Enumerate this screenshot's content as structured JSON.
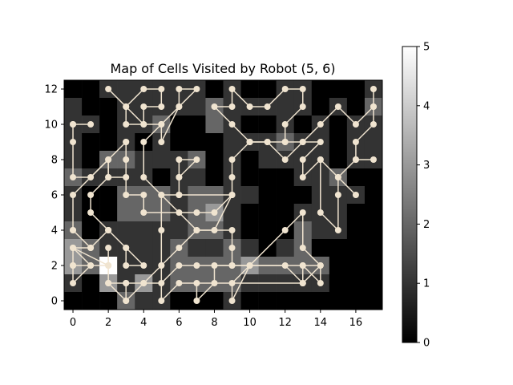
{
  "chart_data": {
    "type": "heatmap",
    "title": "Map of Cells Visited by Robot (5, 6)",
    "xlabel": "",
    "ylabel": "",
    "grid": false,
    "xlim": [
      -0.5,
      17.5
    ],
    "ylim": [
      -0.5,
      12.5
    ],
    "x_ticks": [
      0,
      2,
      4,
      6,
      8,
      10,
      12,
      14,
      16
    ],
    "y_ticks": [
      0,
      2,
      4,
      6,
      8,
      10,
      12
    ],
    "colorbar": {
      "min": 0,
      "max": 5,
      "ticks": [
        0,
        1,
        2,
        3,
        4,
        5
      ],
      "colormap": "gray"
    },
    "path_color": "#f0e4d0",
    "grid_rows_top_to_bottom": [
      [
        0,
        0,
        1,
        1,
        1,
        1,
        1,
        1,
        0,
        1,
        0,
        0,
        1,
        1,
        0,
        0,
        0,
        1
      ],
      [
        1,
        0,
        0,
        1,
        1,
        1,
        1,
        1,
        2,
        1,
        1,
        1,
        1,
        1,
        0,
        1,
        0,
        2
      ],
      [
        1,
        1,
        0,
        1,
        1,
        2,
        0,
        0,
        2,
        1,
        0,
        0,
        1,
        0,
        1,
        0,
        1,
        1
      ],
      [
        1,
        0,
        0,
        1,
        0,
        1,
        0,
        0,
        0,
        1,
        1,
        1,
        2,
        1,
        1,
        0,
        1,
        1
      ],
      [
        1,
        0,
        2,
        2,
        1,
        1,
        1,
        2,
        0,
        1,
        0,
        1,
        1,
        1,
        1,
        0,
        1,
        1
      ],
      [
        2,
        1,
        1,
        1,
        1,
        0,
        1,
        1,
        0,
        1,
        0,
        0,
        0,
        1,
        1,
        2,
        0,
        0
      ],
      [
        1,
        0,
        0,
        2,
        2,
        2,
        1,
        2,
        2,
        1,
        1,
        0,
        0,
        0,
        1,
        1,
        1,
        0
      ],
      [
        1,
        0,
        0,
        2,
        2,
        2,
        1,
        2,
        3,
        1,
        0,
        0,
        0,
        1,
        1,
        1,
        0,
        0
      ],
      [
        2,
        0,
        1,
        1,
        1,
        1,
        1,
        2,
        2,
        1,
        0,
        0,
        0,
        2,
        1,
        1,
        0,
        0
      ],
      [
        3,
        2,
        1,
        1,
        1,
        1,
        2,
        1,
        1,
        2,
        1,
        0,
        1,
        2,
        0,
        0,
        0,
        0
      ],
      [
        3,
        2,
        5,
        1,
        1,
        1,
        2,
        2,
        2,
        2,
        3,
        2,
        2,
        2,
        2,
        0,
        0,
        0
      ],
      [
        1,
        0,
        3,
        1,
        3,
        1,
        2,
        2,
        2,
        2,
        1,
        1,
        1,
        1,
        1,
        0,
        0,
        0
      ],
      [
        0,
        0,
        0,
        2,
        1,
        1,
        0,
        0,
        0,
        1,
        0,
        0,
        0,
        0,
        0,
        0,
        0,
        0
      ]
    ],
    "path_points": [
      [
        0,
        10
      ],
      [
        1,
        10
      ],
      [
        0,
        10
      ],
      [
        0,
        9
      ],
      [
        0,
        7
      ],
      [
        1,
        7
      ],
      [
        3,
        9
      ],
      [
        3,
        8
      ],
      [
        3,
        7
      ],
      [
        2,
        7
      ],
      [
        2,
        8
      ],
      [
        3,
        9
      ],
      [
        3,
        6
      ],
      [
        4,
        6
      ],
      [
        4,
        5
      ],
      [
        7,
        5
      ],
      [
        8,
        5
      ],
      [
        9,
        6
      ],
      [
        8,
        4
      ],
      [
        7,
        4
      ],
      [
        6,
        5
      ],
      [
        5,
        6
      ],
      [
        5,
        4
      ],
      [
        5,
        2
      ],
      [
        5,
        0
      ],
      [
        6,
        1
      ],
      [
        13,
        1
      ],
      [
        14,
        2
      ],
      [
        14,
        1
      ],
      [
        13,
        2
      ],
      [
        9,
        2
      ],
      [
        8,
        2
      ],
      [
        8,
        1
      ],
      [
        7,
        0
      ],
      [
        7,
        1
      ],
      [
        13,
        1
      ]
    ],
    "path_points_b": [
      [
        2,
        12
      ],
      [
        3,
        11
      ],
      [
        3,
        10
      ],
      [
        4,
        10
      ],
      [
        3,
        11
      ],
      [
        4,
        12
      ],
      [
        5,
        12
      ],
      [
        5,
        11
      ],
      [
        4,
        11
      ],
      [
        4,
        10
      ],
      [
        5,
        10
      ],
      [
        5,
        9
      ],
      [
        6,
        11
      ],
      [
        6,
        12
      ],
      [
        7,
        12
      ],
      [
        6,
        11
      ],
      [
        5,
        10
      ],
      [
        4,
        9
      ],
      [
        4,
        7
      ],
      [
        5,
        6
      ],
      [
        6,
        6
      ],
      [
        6,
        7
      ],
      [
        6,
        8
      ],
      [
        7,
        8
      ],
      [
        6,
        7
      ],
      [
        6,
        6
      ],
      [
        9,
        6
      ],
      [
        9,
        7
      ],
      [
        9,
        8
      ],
      [
        10,
        9
      ],
      [
        11,
        9
      ],
      [
        12,
        9
      ],
      [
        12,
        10
      ],
      [
        13,
        11
      ],
      [
        13,
        12
      ],
      [
        12,
        12
      ],
      [
        11,
        11
      ],
      [
        10,
        11
      ],
      [
        9,
        12
      ],
      [
        9,
        11
      ],
      [
        8,
        11
      ],
      [
        9,
        10
      ],
      [
        10,
        9
      ]
    ],
    "path_points_c": [
      [
        12,
        9
      ],
      [
        13,
        9
      ],
      [
        14,
        10
      ],
      [
        15,
        11
      ],
      [
        16,
        10
      ],
      [
        17,
        11
      ],
      [
        17,
        12
      ],
      [
        17,
        11
      ],
      [
        17,
        10
      ],
      [
        16,
        9
      ],
      [
        16,
        8
      ],
      [
        17,
        8
      ],
      [
        16,
        8
      ],
      [
        15,
        7
      ],
      [
        15,
        6
      ],
      [
        15,
        4
      ],
      [
        14,
        5
      ],
      [
        14,
        8
      ],
      [
        15,
        7
      ],
      [
        16,
        6
      ],
      [
        14,
        8
      ],
      [
        13,
        7
      ],
      [
        13,
        8
      ],
      [
        14,
        9
      ],
      [
        13,
        9
      ],
      [
        12,
        8
      ],
      [
        11,
        9
      ],
      [
        10,
        9
      ]
    ],
    "path_points_d": [
      [
        0,
        4
      ],
      [
        1,
        3
      ],
      [
        0,
        3
      ],
      [
        0,
        2
      ],
      [
        0,
        1
      ],
      [
        1,
        2
      ],
      [
        0,
        2
      ],
      [
        2,
        2
      ],
      [
        2,
        3
      ],
      [
        2,
        2
      ],
      [
        1,
        2
      ],
      [
        0,
        3
      ],
      [
        2,
        2
      ],
      [
        2,
        1
      ],
      [
        3,
        0
      ],
      [
        3,
        1
      ],
      [
        4,
        1
      ],
      [
        5,
        2
      ],
      [
        6,
        3
      ],
      [
        7,
        4
      ],
      [
        9,
        4
      ],
      [
        9,
        3
      ],
      [
        9,
        2
      ],
      [
        10,
        2
      ],
      [
        12,
        2
      ],
      [
        13,
        1
      ],
      [
        13,
        2
      ],
      [
        14,
        2
      ],
      [
        13,
        3
      ],
      [
        13,
        5
      ],
      [
        12,
        4
      ],
      [
        10,
        2
      ],
      [
        9,
        0
      ],
      [
        9,
        1
      ],
      [
        10,
        2
      ],
      [
        7,
        2
      ],
      [
        6,
        2
      ],
      [
        5,
        1
      ],
      [
        4,
        1
      ],
      [
        3,
        0
      ],
      [
        3,
        1
      ],
      [
        2,
        1
      ]
    ],
    "path_points_e": [
      [
        2,
        4
      ],
      [
        1,
        3
      ],
      [
        2,
        4
      ],
      [
        3,
        3
      ],
      [
        4,
        2
      ],
      [
        3,
        2
      ],
      [
        3,
        3
      ],
      [
        2,
        4
      ],
      [
        1,
        5
      ],
      [
        1,
        6
      ],
      [
        2,
        7
      ],
      [
        2,
        8
      ],
      [
        0,
        6
      ],
      [
        0,
        4
      ]
    ]
  }
}
